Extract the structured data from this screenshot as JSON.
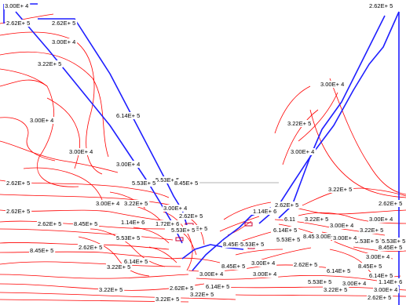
{
  "colors": {
    "background": "#ffffff",
    "contour": "#ff0000",
    "boundary": "#1f1fff",
    "label": "#000000",
    "gray_line": "#9a9a9a"
  },
  "labels": [
    "3.00E+ 4",
    "2.62E+ 5",
    "2.62E+ 5",
    "2.62E+ 5",
    "3.00E+ 4",
    "3.22E+ 5",
    "3.00E+ 4",
    "6.14E+ 5",
    "3.00E+ 4",
    "3.22E+ 5",
    "3.00E+ 4",
    "3.00E+ 4",
    "3.00E+ 4",
    "3.22E+ 5",
    "2.62E+ 5",
    "2.62E+ 5",
    "5.53E+ 5",
    "5.53E+ 5",
    "8.45E+ 5",
    "3.00E+ 4",
    "3.22E+ 5",
    "2.62E+ 5",
    "3.00E+ 4",
    "2.62E+ 5",
    "8.45E+ 5",
    "2.62E+ 5",
    "1.14E+ 6",
    "1.72E+ 6",
    "5.53E+ 5",
    "8.45E+ 5",
    "5.53E+ 5",
    "2.62E+ 5",
    "8.45E+ 5",
    "5.53E+ 5",
    "3.00E+ 4",
    "5.53E+ 5",
    "6.14E+ 5",
    "3.22E+ 5",
    "3.00E+ 4",
    "3.22E+ 5",
    "3.22E+ 5",
    "6.14E+ 5",
    "2.62E+ 5",
    "1.14E+ 6",
    "6.11",
    "3.22E+ 5",
    "3.00E+ 4",
    "3.00E+ 4",
    "6.14E+ 5",
    "3.22E+ 5",
    "5.53E+ 5",
    "8.45E+ 5",
    "3.00E+ 4",
    "5.53E+ 5",
    "3.00E+ 4",
    "8.45E+ 5",
    "5.53E+ 5",
    "3.00E+ 4",
    "2.62E+ 5",
    "8.45E+ 5",
    "6.14E+ 5",
    "1.14E+ 6",
    "8.45E+ 5",
    "5.53E+ 5",
    "3.00E+ 4",
    "3.22E+ 5",
    "3.00E+ 4",
    "2.62E+ 5",
    "3.22E+ 5",
    "6.14E+ 5",
    "3.00E+ 4",
    "2.62E+ 5"
  ]
}
